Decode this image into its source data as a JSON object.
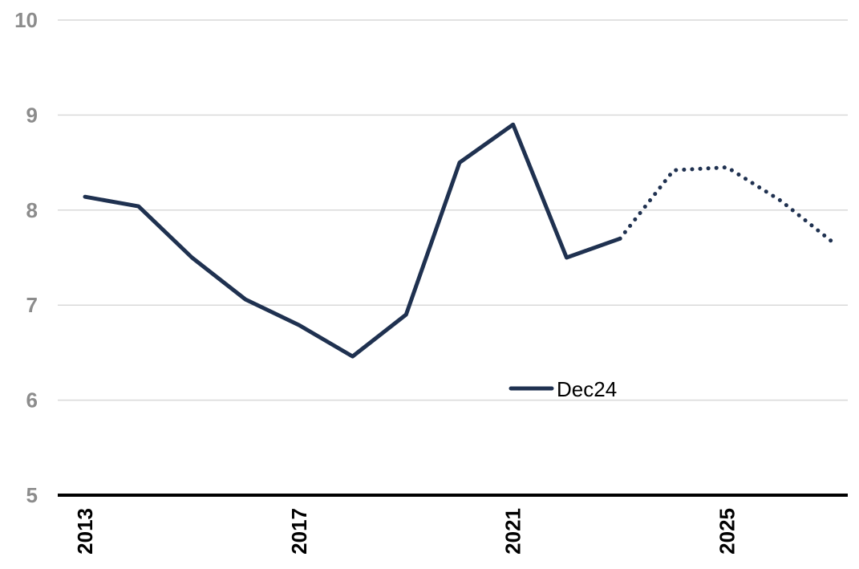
{
  "chart_data": {
    "type": "line",
    "title": "",
    "xlabel": "",
    "ylabel": "",
    "x": [
      2013,
      2014,
      2015,
      2016,
      2017,
      2018,
      2019,
      2020,
      2021,
      2022,
      2023,
      2024,
      2025,
      2026,
      2027
    ],
    "x_ticks": [
      "2013",
      "2017",
      "2021",
      "2025"
    ],
    "y_ticks": [
      "5",
      "6",
      "7",
      "8",
      "9",
      "10"
    ],
    "ylim": [
      5,
      10
    ],
    "xlim": [
      2013,
      2027
    ],
    "grid": true,
    "legend_position": "center",
    "series": [
      {
        "name": "Dec24",
        "color": "#1f3150",
        "actual": [
          {
            "x": 2013,
            "y": 8.14
          },
          {
            "x": 2014,
            "y": 8.04
          },
          {
            "x": 2015,
            "y": 7.5
          },
          {
            "x": 2016,
            "y": 7.06
          },
          {
            "x": 2017,
            "y": 6.79
          },
          {
            "x": 2018,
            "y": 6.46
          },
          {
            "x": 2019,
            "y": 6.9
          },
          {
            "x": 2020,
            "y": 8.5
          },
          {
            "x": 2021,
            "y": 8.9
          },
          {
            "x": 2022,
            "y": 7.5
          },
          {
            "x": 2023,
            "y": 7.7
          }
        ],
        "forecast": [
          {
            "x": 2023,
            "y": 7.7
          },
          {
            "x": 2024,
            "y": 8.42
          },
          {
            "x": 2025,
            "y": 8.45
          },
          {
            "x": 2026,
            "y": 8.1
          },
          {
            "x": 2027,
            "y": 7.65
          }
        ]
      }
    ]
  }
}
